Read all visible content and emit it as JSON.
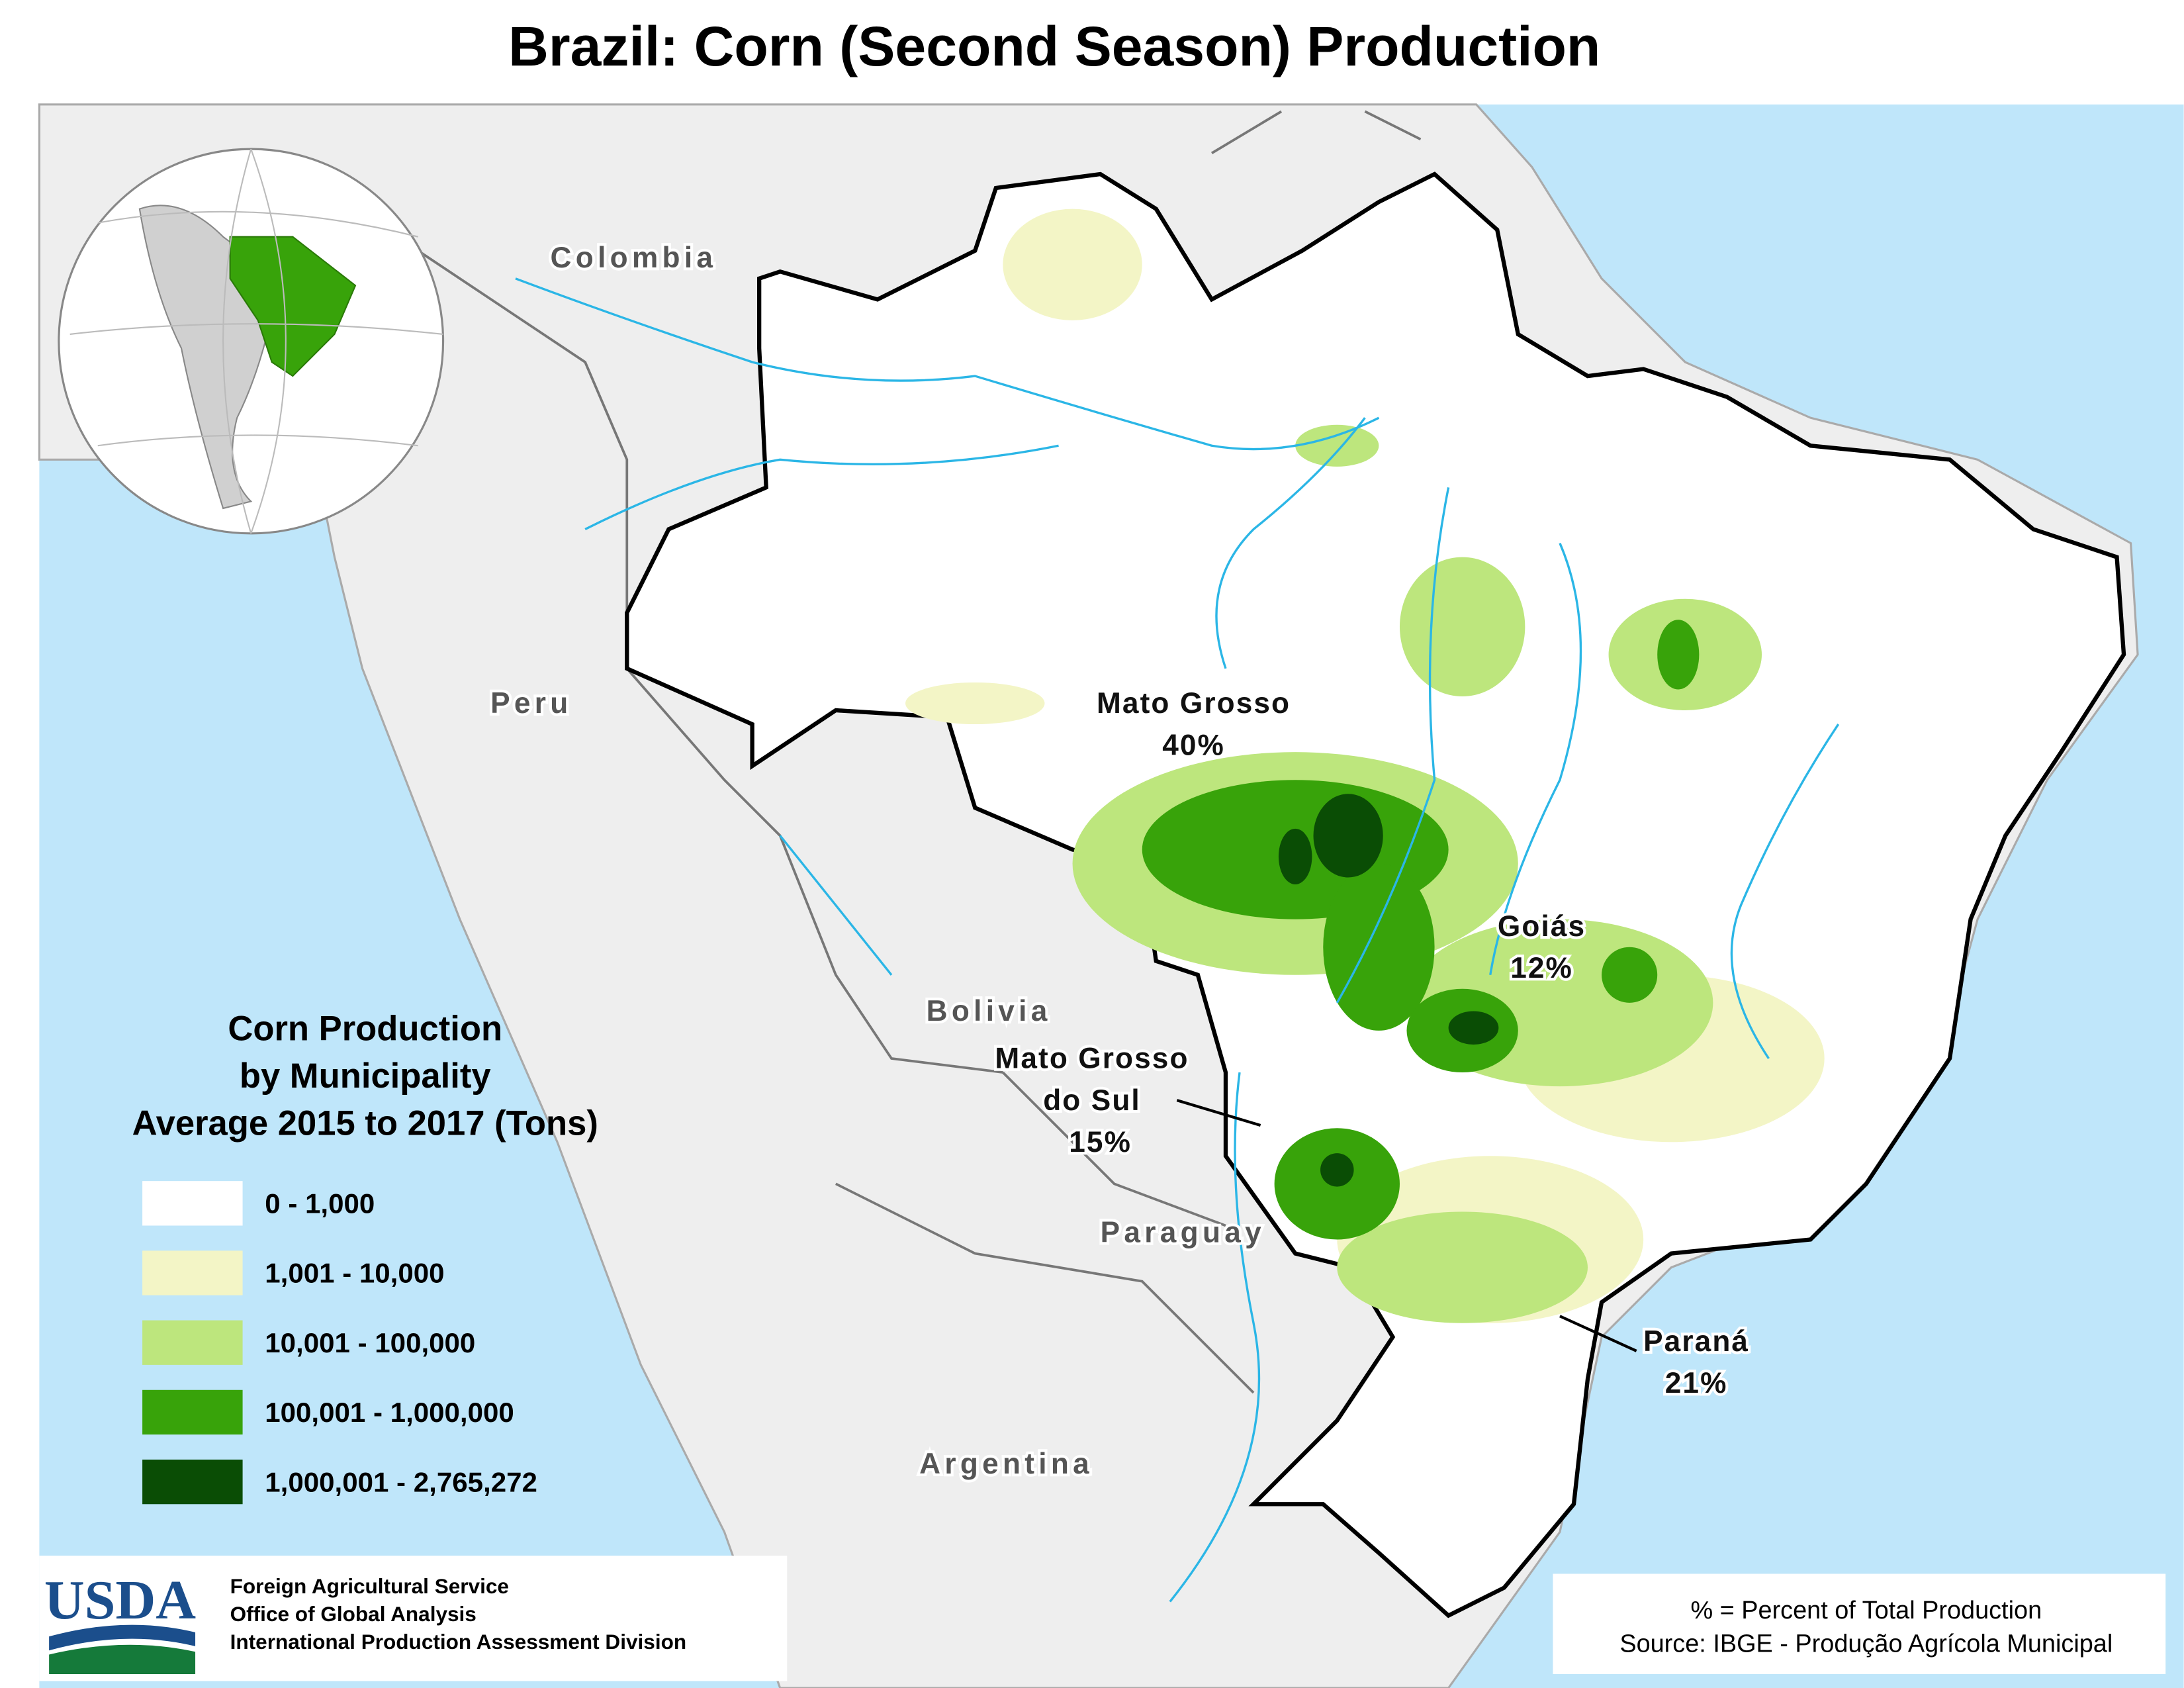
{
  "title": "Brazil: Corn (Second Season) Production",
  "country_labels": [
    "Colombia",
    "Peru",
    "Bolivia",
    "Paraguay",
    "Argentina"
  ],
  "state_labels": [
    {
      "name": [
        "Mato Grosso"
      ],
      "share": "40%"
    },
    {
      "name": [
        "Goiás"
      ],
      "share": "12%"
    },
    {
      "name": [
        "Mato Grosso",
        "do Sul"
      ],
      "share": "15%"
    },
    {
      "name": [
        "Paraná"
      ],
      "share": "21%"
    }
  ],
  "legend": {
    "title": [
      "Corn Production",
      "by Municipality",
      "Average 2015 to 2017 (Tons)"
    ],
    "items": [
      {
        "label": "0 - 1,000",
        "color": "#ffffff"
      },
      {
        "label": "1,001 - 10,000",
        "color": "#f3f5c6"
      },
      {
        "label": "10,001 - 100,000",
        "color": "#bde67d"
      },
      {
        "label": "100,001 - 1,000,000",
        "color": "#38a30a"
      },
      {
        "label": "1,000,001 - 2,765,272",
        "color": "#0a4d05"
      }
    ]
  },
  "footer": {
    "logo": "USDA",
    "agency": [
      "Foreign Agricultural Service",
      "Office of Global Analysis",
      "International Production Assessment Division"
    ],
    "notes": [
      "% = Percent of Total Production",
      "Source: IBGE - Produção Agrícola Municipal"
    ]
  }
}
